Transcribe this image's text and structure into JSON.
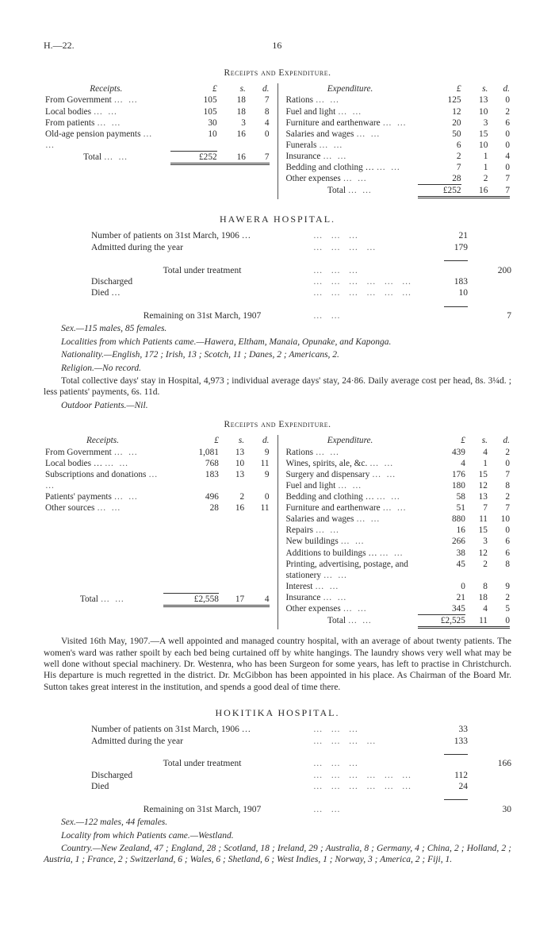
{
  "header": {
    "left": "H.—22.",
    "page": "16"
  },
  "sec1_title": "Receipts and Expenditure.",
  "currency_heads": {
    "receipts": "Receipts.",
    "expenditure": "Expenditure.",
    "L": "£",
    "s": "s.",
    "d": "d."
  },
  "sec1": {
    "receipts": [
      {
        "label": "From Government",
        "L": "105",
        "s": "18",
        "d": "7"
      },
      {
        "label": "Local bodies",
        "L": "105",
        "s": "18",
        "d": "8"
      },
      {
        "label": "From patients",
        "L": "30",
        "s": "3",
        "d": "4"
      },
      {
        "label": "Old-age pension payments",
        "L": "10",
        "s": "16",
        "d": "0"
      }
    ],
    "receipts_total": {
      "label": "Total",
      "L": "£252",
      "s": "16",
      "d": "7"
    },
    "expenditure": [
      {
        "label": "Rations",
        "L": "125",
        "s": "13",
        "d": "0"
      },
      {
        "label": "Fuel and light",
        "L": "12",
        "s": "10",
        "d": "2"
      },
      {
        "label": "Furniture and earthenware",
        "L": "20",
        "s": "3",
        "d": "6"
      },
      {
        "label": "Salaries and wages",
        "L": "50",
        "s": "15",
        "d": "0"
      },
      {
        "label": "Funerals",
        "L": "6",
        "s": "10",
        "d": "0"
      },
      {
        "label": "Insurance",
        "L": "2",
        "s": "1",
        "d": "4"
      },
      {
        "label": "Bedding and clothing …",
        "L": "7",
        "s": "1",
        "d": "0"
      },
      {
        "label": "Other expenses",
        "L": "28",
        "s": "2",
        "d": "7"
      }
    ],
    "expenditure_total": {
      "label": "Total",
      "L": "£252",
      "s": "16",
      "d": "7"
    }
  },
  "hawera": {
    "title": "HAWERA HOSPITAL.",
    "stats": {
      "row1": "Number of patients on 31st March, 1906 …",
      "row1v": "21",
      "row2": "Admitted during the year",
      "row2v": "179",
      "row3": "Total under treatment",
      "row3v": "200",
      "row4": "Discharged",
      "row4v": "183",
      "row5": "Died …",
      "row5v": "10",
      "row6": "Remaining on 31st March, 1907",
      "row6v": "7"
    },
    "notes": {
      "sex": "Sex.—115 males, 85 females.",
      "localities": "Localities from which Patients came.—Hawera, Eltham, Manaia, Opunake, and Kaponga.",
      "nationality": "Nationality.—English, 172 ; Irish, 13 ; Scotch, 11 ; Danes, 2 ; Americans, 2.",
      "religion": "Religion.—No record.",
      "collective": "Total collective days' stay in Hospital, 4,973 ; individual average days' stay, 24·86.   Daily average cost per head, 8s. 3¼d. ; less patients' payments, 6s. 11d.",
      "outdoor": "Outdoor Patients.—Nil."
    }
  },
  "sec2_title": "Receipts and Expenditure.",
  "sec2": {
    "receipts": [
      {
        "label": "From Government",
        "L": "1,081",
        "s": "13",
        "d": "9"
      },
      {
        "label": "Local bodies …",
        "L": "768",
        "s": "10",
        "d": "11"
      },
      {
        "label": "Subscriptions and donations",
        "L": "183",
        "s": "13",
        "d": "9"
      },
      {
        "label": "Patients' payments",
        "L": "496",
        "s": "2",
        "d": "0"
      },
      {
        "label": "Other sources",
        "L": "28",
        "s": "16",
        "d": "11"
      }
    ],
    "receipts_total": {
      "label": "Total",
      "L": "£2,558",
      "s": "17",
      "d": "4"
    },
    "expenditure": [
      {
        "label": "Rations",
        "L": "439",
        "s": "4",
        "d": "2"
      },
      {
        "label": "Wines, spirits, ale, &c.",
        "L": "4",
        "s": "1",
        "d": "0"
      },
      {
        "label": "Surgery and dispensary",
        "L": "176",
        "s": "15",
        "d": "7"
      },
      {
        "label": "Fuel and light",
        "L": "180",
        "s": "12",
        "d": "8"
      },
      {
        "label": "Bedding and clothing …",
        "L": "58",
        "s": "13",
        "d": "2"
      },
      {
        "label": "Furniture and earthenware",
        "L": "51",
        "s": "7",
        "d": "7"
      },
      {
        "label": "Salaries and wages",
        "L": "880",
        "s": "11",
        "d": "10"
      },
      {
        "label": "Repairs",
        "L": "16",
        "s": "15",
        "d": "0"
      },
      {
        "label": "New buildings",
        "L": "266",
        "s": "3",
        "d": "6"
      },
      {
        "label": "Additions to buildings …",
        "L": "38",
        "s": "12",
        "d": "6"
      },
      {
        "label": "Printing, advertising, postage, and stationery",
        "L": "45",
        "s": "2",
        "d": "8"
      },
      {
        "label": "Interest",
        "L": "0",
        "s": "8",
        "d": "9"
      },
      {
        "label": "Insurance",
        "L": "21",
        "s": "18",
        "d": "2"
      },
      {
        "label": "Other expenses",
        "L": "345",
        "s": "4",
        "d": "5"
      }
    ],
    "expenditure_total": {
      "label": "Total",
      "L": "£2,525",
      "s": "11",
      "d": "0"
    }
  },
  "visit_para": "Visited 16th May, 1907.—A well appointed and managed country hospital, with an average of about twenty patients. The women's ward was rather spoilt by each bed being curtained off by white hangings. The laundry shows very well what may be well done without special machinery. Dr. Westenra, who has been Surgeon for some years, has left to practise in Christchurch. His departure is much regretted in the district. Dr. McGibbon has been appointed in his place. As Chairman of the Board Mr. Sutton takes great interest in the institution, and spends a good deal of time there.",
  "hokitika": {
    "title": "HOKITIKA HOSPITAL.",
    "stats": {
      "row1": "Number of patients on 31st March, 1906 …",
      "row1v": "33",
      "row2": "Admitted during the year",
      "row2v": "133",
      "row3": "Total under treatment",
      "row3v": "166",
      "row4": "Discharged",
      "row4v": "112",
      "row5": "Died",
      "row5v": "24",
      "row6": "Remaining on 31st March, 1907",
      "row6v": "30"
    },
    "notes": {
      "sex": "Sex.—122 males, 44 females.",
      "locality": "Locality from which Patients came.—Westland.",
      "country": "Country.—New Zealand, 47 ; England, 28 ; Scotland, 18 ; Ireland, 29 ; Australia, 8 ; Germany, 4 ; China, 2 ; Holland, 2 ; Austria, 1 ; France, 2 ; Switzerland, 6 ; Wales, 6 ; Shetland, 6 ; West Indies, 1 ; Norway, 3 ; America, 2 ; Fiji, 1."
    }
  }
}
